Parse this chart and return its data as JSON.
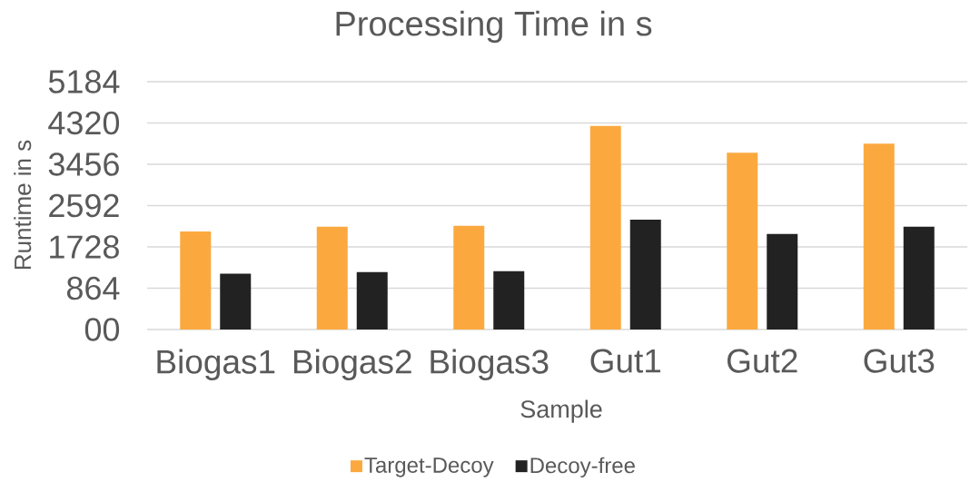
{
  "chart_data": {
    "type": "bar",
    "title": "Processing Time in s",
    "xlabel": "Sample",
    "ylabel": "Runtime in s",
    "categories": [
      "Biogas1",
      "Biogas2",
      "Biogas3",
      "Gut1",
      "Gut2",
      "Gut3"
    ],
    "series": [
      {
        "name": "Target-Decoy",
        "color": "#fba93f",
        "values": [
          2050,
          2150,
          2170,
          4260,
          3700,
          3890
        ]
      },
      {
        "name": "Decoy-free",
        "color": "#222222",
        "values": [
          1170,
          1200,
          1220,
          2300,
          2000,
          2150
        ]
      }
    ],
    "ylim": [
      0,
      5184
    ],
    "yticks": [
      {
        "value": 0,
        "label": "00"
      },
      864,
      1728,
      2592,
      3456,
      4320,
      5184
    ],
    "grid": "y",
    "legend": "bottom"
  }
}
